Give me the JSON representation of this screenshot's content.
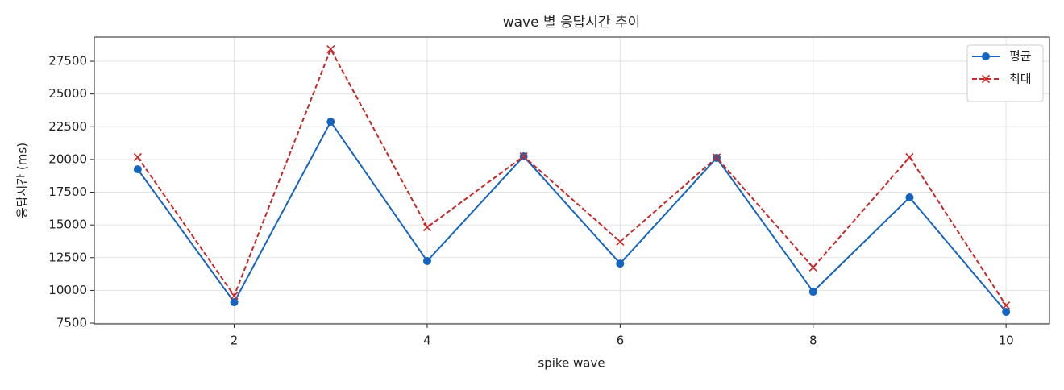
{
  "chart_data": {
    "type": "line",
    "title": "wave 별 응답시간 추이",
    "x_label": "spike wave",
    "y_label": "응답시간 (ms)",
    "x": [
      1,
      2,
      3,
      4,
      5,
      6,
      7,
      8,
      9,
      10
    ],
    "series": [
      {
        "name": "평균",
        "color": "#1565c0",
        "marker": "o",
        "linestyle": "solid",
        "values": [
          19250,
          9100,
          22880,
          12240,
          20240,
          12050,
          20120,
          9900,
          17100,
          8360
        ]
      },
      {
        "name": "최대",
        "color": "#c62828",
        "marker": "x",
        "linestyle": "dashed",
        "values": [
          20180,
          9590,
          28420,
          14820,
          20240,
          13720,
          20150,
          11750,
          20180,
          8850
        ]
      }
    ],
    "xlim": [
      0.55,
      10.45
    ],
    "ylim": [
      7440,
      29350
    ],
    "xticks": [
      2,
      4,
      6,
      8,
      10
    ],
    "yticks": [
      7500,
      10000,
      12500,
      15000,
      17500,
      20000,
      22500,
      25000,
      27500
    ],
    "grid": true,
    "legend": "upper right"
  }
}
